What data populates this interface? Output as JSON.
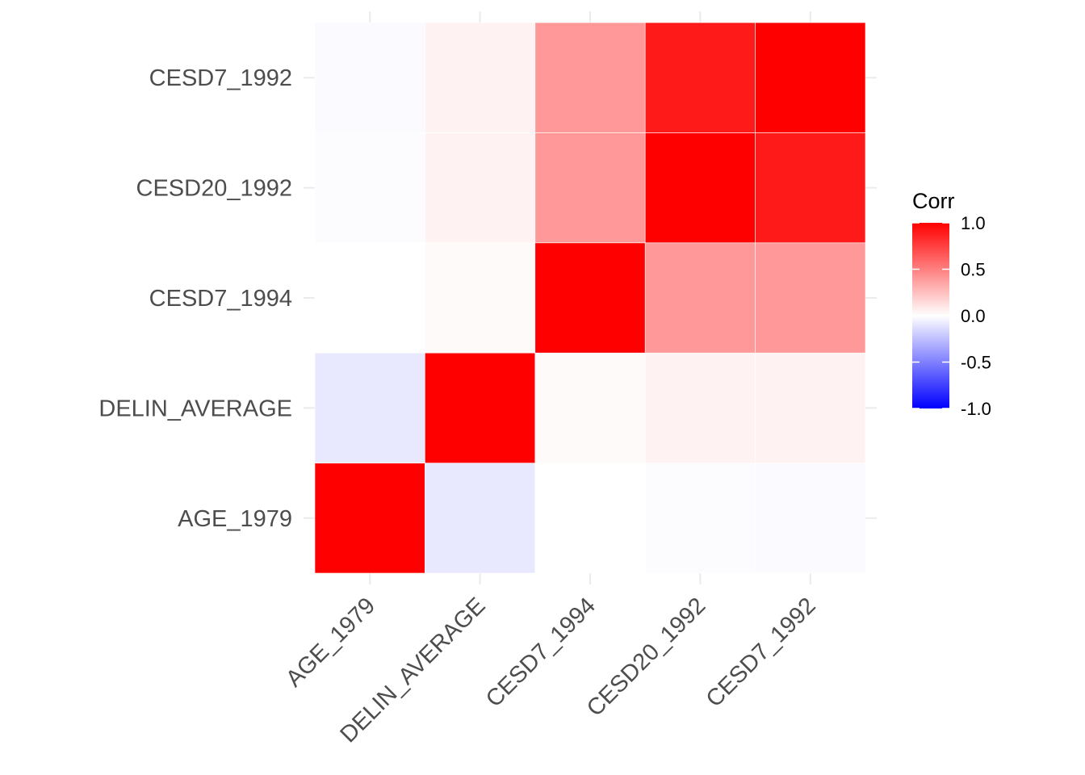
{
  "chart_data": {
    "type": "heatmap",
    "x_categories": [
      "AGE_1979",
      "DELIN_AVERAGE",
      "CESD7_1994",
      "CESD20_1992",
      "CESD7_1992"
    ],
    "y_categories": [
      "AGE_1979",
      "DELIN_AVERAGE",
      "CESD7_1994",
      "CESD20_1992",
      "CESD7_1992"
    ],
    "matrix": [
      [
        1.0,
        -0.09,
        0.0,
        -0.01,
        -0.02
      ],
      [
        -0.09,
        1.0,
        0.02,
        0.05,
        0.05
      ],
      [
        0.0,
        0.02,
        1.0,
        0.4,
        0.4
      ],
      [
        -0.01,
        0.05,
        0.4,
        1.0,
        0.9
      ],
      [
        -0.02,
        0.05,
        0.4,
        0.9,
        1.0
      ]
    ],
    "color_scale": {
      "low": "#0000FF",
      "mid": "#FFFFFF",
      "high": "#FF0000",
      "limits": [
        -1.0,
        1.0
      ]
    },
    "legend": {
      "title": "Corr",
      "ticks": [
        "1.0",
        "0.5",
        "0.0",
        "-0.5",
        "-1.0"
      ],
      "position": "right"
    },
    "grid": true
  }
}
